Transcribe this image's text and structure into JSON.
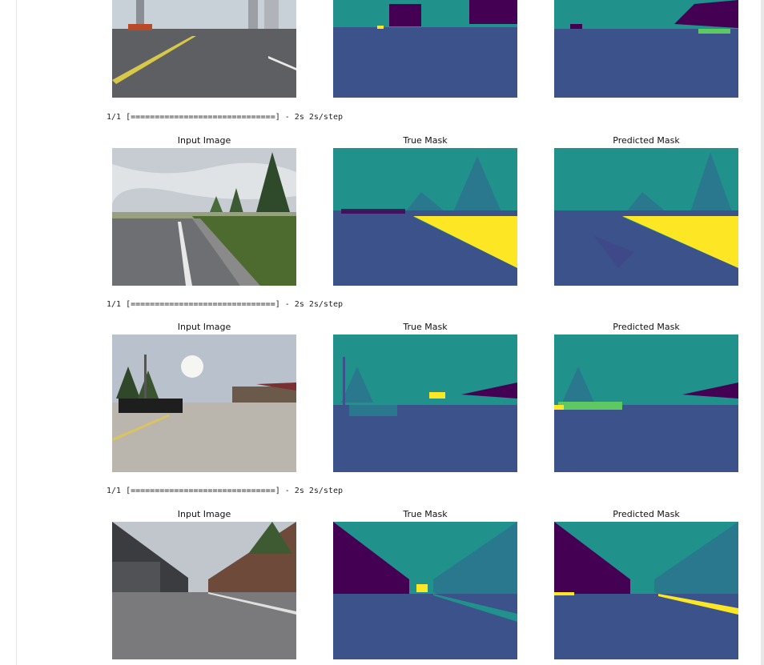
{
  "rows": [
    {
      "log": "",
      "titles": [
        "",
        "",
        ""
      ],
      "scene": "city"
    },
    {
      "log": "1/1 [==============================] - 2s 2s/step",
      "titles": [
        "Input Image",
        "True Mask",
        "Predicted Mask"
      ],
      "scene": "grass"
    },
    {
      "log": "1/1 [==============================] - 2s 2s/step",
      "titles": [
        "Input Image",
        "True Mask",
        "Predicted Mask"
      ],
      "scene": "car"
    },
    {
      "log": "1/1 [==============================] - 2s 2s/step",
      "titles": [
        "Input Image",
        "True Mask",
        "Predicted Mask"
      ],
      "scene": "wall"
    }
  ],
  "colors": {
    "viridis_dark": "#440154",
    "viridis_blue": "#3b528b",
    "viridis_teal": "#21918c",
    "viridis_green": "#5ec962",
    "viridis_yellow": "#fde725"
  }
}
